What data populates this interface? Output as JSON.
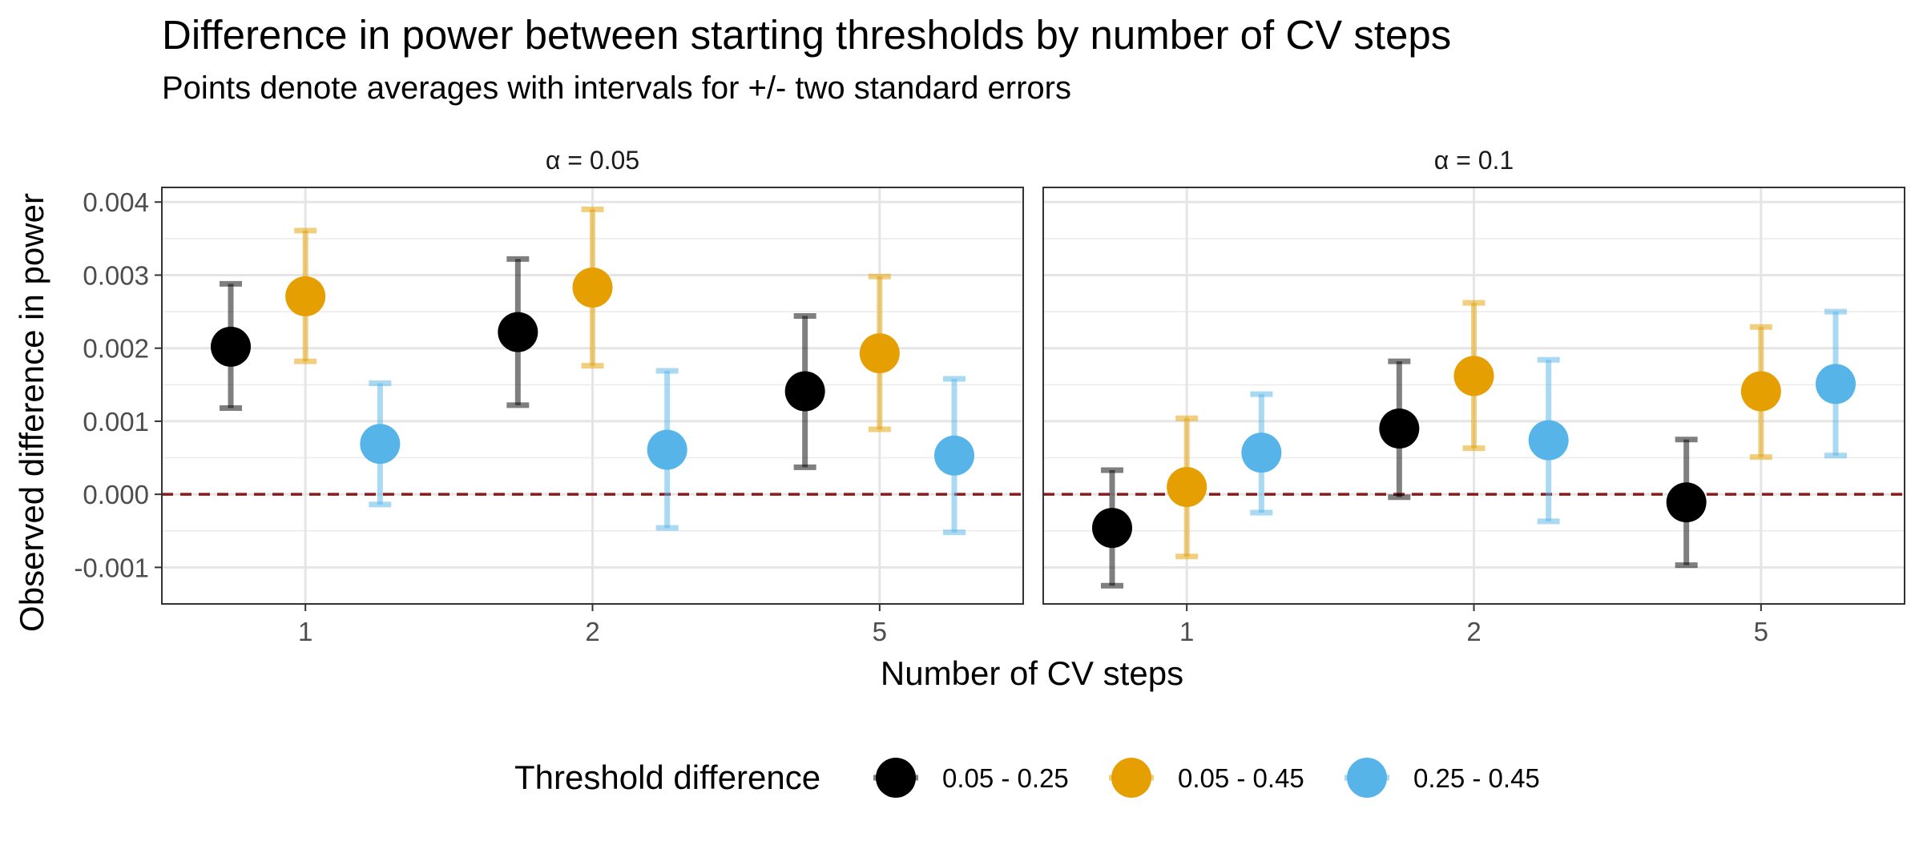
{
  "chart_data": {
    "type": "scatter",
    "title": "Difference in power between starting thresholds by number of CV steps",
    "subtitle": "Points denote averages with intervals for +/- two standard errors",
    "xlabel": "Number of CV steps",
    "ylabel": "Observed difference in power",
    "categories": [
      "1",
      "2",
      "5"
    ],
    "ylim": [
      -0.0015,
      0.0042
    ],
    "yticks": [
      "-0.001",
      "0.000",
      "0.001",
      "0.002",
      "0.003",
      "0.004"
    ],
    "reference_line": {
      "y": 0,
      "style": "dashed",
      "color": "#8B1A1A"
    },
    "grid": true,
    "legend": {
      "title": "Threshold difference",
      "position": "bottom",
      "entries": [
        "0.05 - 0.25",
        "0.05 - 0.45",
        "0.25 - 0.45"
      ]
    },
    "panels": [
      {
        "label": "α = 0.05",
        "series": [
          {
            "name": "0.05 - 0.25",
            "color": "#000000",
            "values": [
              0.00202,
              0.00222,
              0.00141
            ],
            "lower": [
              0.00118,
              0.00122,
              0.00037
            ],
            "upper": [
              0.00288,
              0.00322,
              0.00244
            ]
          },
          {
            "name": "0.05 - 0.45",
            "color": "#E69F00",
            "values": [
              0.00271,
              0.00283,
              0.00193
            ],
            "lower": [
              0.00182,
              0.00176,
              0.00089
            ],
            "upper": [
              0.00361,
              0.0039,
              0.00298
            ]
          },
          {
            "name": "0.25 - 0.45",
            "color": "#56B4E9",
            "values": [
              0.00069,
              0.00061,
              0.00053
            ],
            "lower": [
              -0.00014,
              -0.00046,
              -0.00052
            ],
            "upper": [
              0.00152,
              0.00169,
              0.00158
            ]
          }
        ]
      },
      {
        "label": "α = 0.1",
        "series": [
          {
            "name": "0.05 - 0.25",
            "color": "#000000",
            "values": [
              -0.00046,
              0.0009,
              -0.00011
            ],
            "lower": [
              -0.00125,
              -4e-05,
              -0.00097
            ],
            "upper": [
              0.00033,
              0.00182,
              0.00075
            ]
          },
          {
            "name": "0.05 - 0.45",
            "color": "#E69F00",
            "values": [
              0.0001,
              0.00162,
              0.00141
            ],
            "lower": [
              -0.00085,
              0.00063,
              0.00051
            ],
            "upper": [
              0.00104,
              0.00262,
              0.00229
            ]
          },
          {
            "name": "0.25 - 0.45",
            "color": "#56B4E9",
            "values": [
              0.00057,
              0.00074,
              0.00151
            ],
            "lower": [
              -0.00025,
              -0.00037,
              0.00053
            ],
            "upper": [
              0.00137,
              0.00184,
              0.0025
            ]
          }
        ]
      }
    ]
  }
}
